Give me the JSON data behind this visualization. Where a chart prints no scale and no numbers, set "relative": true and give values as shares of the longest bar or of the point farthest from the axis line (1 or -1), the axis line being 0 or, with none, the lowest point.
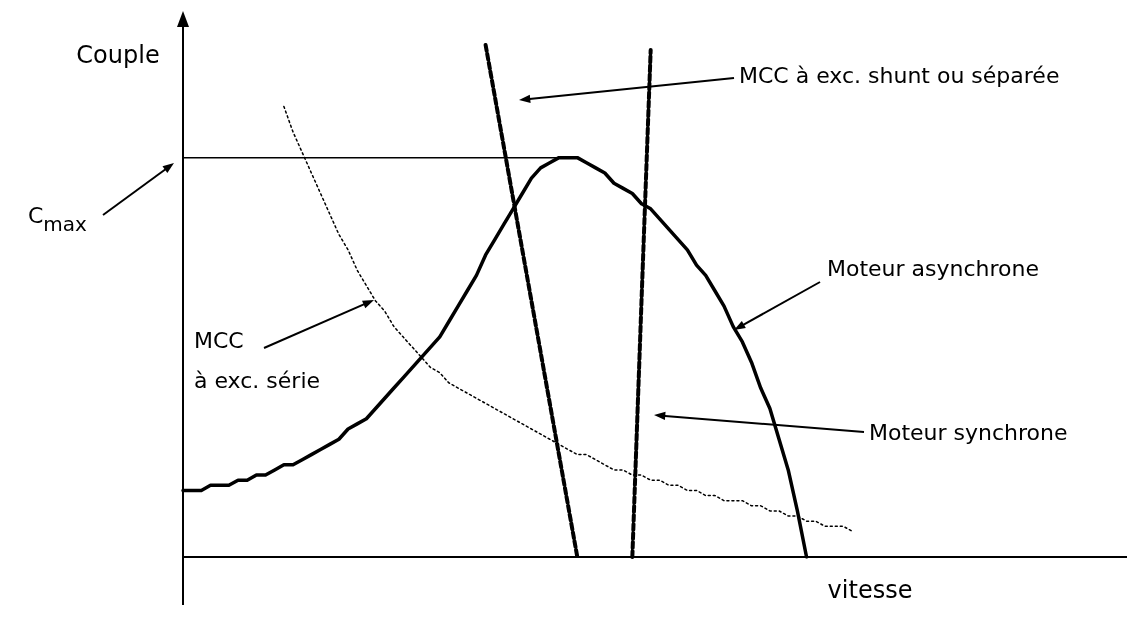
{
  "chart_data": {
    "type": "line",
    "relative": true,
    "xlabel": "vitesse",
    "ylabel": "Couple",
    "marker": "none",
    "grid": false,
    "categories": [
      null,
      null,
      null,
      null,
      null,
      null,
      null,
      null,
      null,
      null,
      null,
      null,
      null,
      null,
      null,
      null,
      null,
      null,
      null,
      null,
      null,
      null,
      null,
      null,
      null,
      null,
      null,
      null,
      null,
      null,
      null,
      null,
      null,
      null,
      null,
      null,
      null,
      null,
      null,
      null,
      null,
      null,
      null,
      null,
      null,
      null,
      null,
      null,
      null,
      null,
      null,
      null,
      null,
      null,
      null,
      null,
      null,
      null,
      null,
      null,
      null,
      null,
      null,
      null,
      null,
      null,
      null,
      null,
      null,
      null,
      null,
      null,
      null,
      null,
      null,
      null,
      null,
      null,
      null,
      null,
      null,
      null,
      null,
      null,
      null,
      null,
      null,
      null,
      null,
      null,
      null,
      null,
      null,
      null,
      null,
      null,
      null,
      null,
      null,
      null,
      null
    ],
    "series": [
      {
        "color": "#000000",
        "line_style": "solid",
        "values": [
          0.78,
          0.78,
          0.78,
          0.78,
          0.78,
          0.78,
          0.78,
          0.78,
          0.78,
          0.78,
          0.78,
          0.78,
          0.78,
          0.78,
          0.78,
          0.78,
          0.78,
          0.78,
          0.78,
          0.78,
          0.78,
          0.78,
          0.78,
          0.78,
          0.78,
          0.78,
          0.78,
          0.78,
          0.78,
          0.78,
          0.78,
          0.78,
          0.78,
          0.78,
          0.78,
          0.78,
          0.78,
          0.78,
          0.78,
          0.78,
          0.78,
          0.78,
          0.78,
          null,
          null,
          null,
          null,
          null,
          null,
          null,
          null,
          null,
          null,
          null,
          null,
          null,
          null,
          null,
          null,
          null,
          null,
          null,
          null,
          null,
          null,
          null,
          null,
          null,
          null,
          null,
          null,
          null,
          null,
          null,
          null,
          null,
          null,
          null,
          null,
          null,
          null,
          null,
          null,
          null,
          null,
          null,
          null,
          null,
          null,
          null,
          null,
          null,
          null,
          null,
          null,
          null,
          null,
          null,
          null,
          null,
          null
        ]
      },
      {
        "color": "#000000",
        "line_style": "solid",
        "values": [
          0.13,
          0.13,
          0.13,
          0.14,
          0.14,
          0.14,
          0.15,
          0.15,
          0.16,
          0.16,
          0.17,
          0.18,
          0.18,
          0.19,
          0.2,
          0.21,
          0.22,
          0.23,
          0.25,
          0.26,
          0.27,
          0.29,
          0.31,
          0.33,
          0.35,
          0.37,
          0.39,
          0.41,
          0.43,
          0.46,
          0.49,
          0.52,
          0.55,
          0.59,
          0.62,
          0.65,
          0.68,
          0.71,
          0.74,
          0.76,
          0.77,
          0.78,
          0.78,
          0.78,
          0.77,
          0.76,
          0.75,
          0.73,
          0.72,
          0.71,
          0.69,
          0.68,
          0.66,
          0.64,
          0.62,
          0.6,
          0.57,
          0.55,
          0.52,
          0.49,
          0.45,
          0.42,
          0.38,
          0.33,
          0.29,
          0.23,
          0.17,
          0.09,
          0,
          null,
          null,
          null,
          null,
          null,
          null,
          null,
          null,
          null,
          null,
          null,
          null,
          null,
          null,
          null,
          null,
          null,
          null,
          null,
          null,
          null,
          null,
          null,
          null,
          null,
          null,
          null,
          null,
          null,
          null,
          null,
          null
        ]
      },
      {
        "color": "#000000",
        "line_style": "dotted",
        "values": [
          null,
          null,
          null,
          null,
          null,
          null,
          null,
          null,
          null,
          null,
          null,
          0.88,
          0.83,
          0.79,
          0.75,
          0.71,
          0.67,
          0.63,
          0.6,
          0.56,
          0.53,
          0.5,
          0.48,
          0.45,
          0.43,
          0.41,
          0.39,
          0.37,
          0.36,
          0.34,
          0.33,
          0.32,
          0.31,
          0.3,
          0.29,
          0.28,
          0.27,
          0.26,
          0.25,
          0.24,
          0.23,
          0.22,
          0.21,
          0.2,
          0.2,
          0.19,
          0.18,
          0.17,
          0.17,
          0.16,
          0.16,
          0.15,
          0.15,
          0.14,
          0.14,
          0.13,
          0.13,
          0.12,
          0.12,
          0.11,
          0.11,
          0.11,
          0.1,
          0.1,
          0.09,
          0.09,
          0.08,
          0.08,
          0.07,
          0.07,
          0.06,
          0.06,
          0.06,
          0.05,
          null,
          null,
          null,
          null,
          null,
          null,
          null,
          null,
          null,
          null,
          null,
          null,
          null,
          null,
          null,
          null,
          null,
          null,
          null,
          null,
          null,
          null,
          null,
          null,
          null,
          null,
          null
        ]
      },
      {
        "color": "#000000",
        "line_style": "dashed",
        "values": [
          null,
          null,
          null,
          null,
          null,
          null,
          null,
          null,
          null,
          null,
          null,
          null,
          null,
          null,
          null,
          null,
          null,
          null,
          null,
          null,
          null,
          null,
          null,
          null,
          null,
          null,
          null,
          null,
          null,
          null,
          null,
          null,
          null,
          1,
          0.9,
          0.8,
          0.7,
          0.6,
          0.5,
          0.4,
          0.3,
          0.2,
          0.1,
          0,
          null,
          null,
          null,
          null,
          null,
          null,
          null,
          null,
          null,
          null,
          null,
          null,
          null,
          null,
          null,
          null,
          null,
          null,
          null,
          null,
          null,
          null,
          null,
          null,
          null,
          null,
          null,
          null,
          null,
          null,
          null,
          null,
          null,
          null,
          null,
          null,
          null,
          null,
          null,
          null,
          null,
          null,
          null,
          null,
          null,
          null,
          null,
          null,
          null,
          null,
          null,
          null,
          null,
          null,
          null,
          null,
          null
        ]
      },
      {
        "color": "#000000",
        "line_style": "dashed",
        "values": [
          null,
          null,
          null,
          null,
          null,
          null,
          null,
          null,
          null,
          null,
          null,
          null,
          null,
          null,
          null,
          null,
          null,
          null,
          null,
          null,
          null,
          null,
          null,
          null,
          null,
          null,
          null,
          null,
          null,
          null,
          null,
          null,
          null,
          null,
          null,
          null,
          null,
          null,
          null,
          null,
          null,
          null,
          null,
          null,
          null,
          null,
          null,
          null,
          null,
          0,
          0.5,
          0.99,
          null,
          null,
          null,
          null,
          null,
          null,
          null,
          null,
          null,
          null,
          null,
          null,
          null,
          null,
          null,
          null,
          null,
          null,
          null,
          null,
          null,
          null,
          null,
          null,
          null,
          null,
          null,
          null,
          null,
          null,
          null,
          null,
          null,
          null,
          null,
          null,
          null,
          null,
          null,
          null,
          null,
          null,
          null,
          null,
          null,
          null,
          null,
          null,
          null
        ]
      }
    ],
    "annotations": [
      "C$_{max}$",
      "MCC à exc. shunt ou séparée",
      "Moteur asynchrone",
      "MCC\nà exc. série",
      "Moteur synchrone"
    ]
  }
}
